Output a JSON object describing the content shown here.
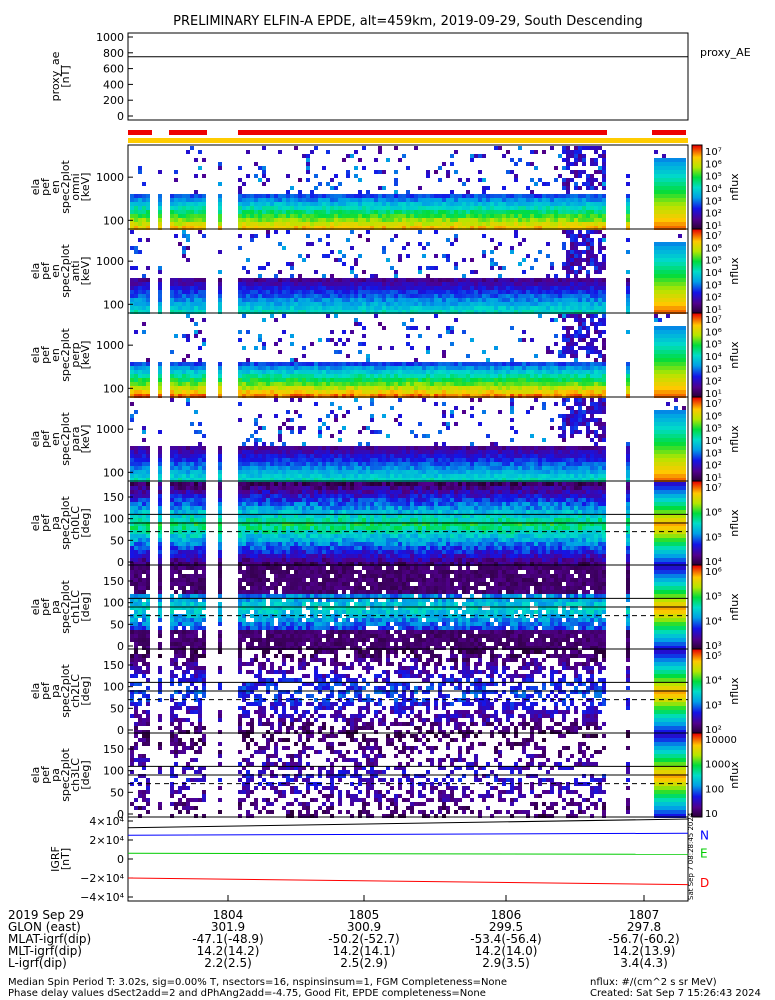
{
  "title": "PRELIMINARY ELFIN-A EPDE, alt=459km, 2019-09-29, South Descending",
  "panels": [
    {
      "id": "ae",
      "label": [
        "proxy_ae",
        "[nT]"
      ],
      "right_label": "proxy_AE",
      "yticks": [
        "1000",
        "800",
        "600",
        "400",
        "200",
        "0"
      ],
      "value": 750
    },
    {
      "id": "en1",
      "label": [
        "ela",
        "pef",
        "en",
        "spec2plot",
        "omni",
        "[keV]"
      ],
      "yticks": [
        "1000",
        "100"
      ],
      "kind": "energy",
      "cbar": [
        "10⁷",
        "10⁶",
        "10⁵",
        "10⁴",
        "10³",
        "10²",
        "10¹"
      ],
      "cbar_label": "nflux"
    },
    {
      "id": "en2",
      "label": [
        "ela",
        "pef",
        "en",
        "spec2plot",
        "anti",
        "[keV]"
      ],
      "yticks": [
        "1000",
        "100"
      ],
      "kind": "energy",
      "cbar": [
        "10⁷",
        "10⁶",
        "10⁵",
        "10⁴",
        "10³",
        "10²",
        "10¹"
      ],
      "cbar_label": "nflux"
    },
    {
      "id": "en3",
      "label": [
        "ela",
        "pef",
        "en",
        "spec2plot",
        "perp",
        "[keV]"
      ],
      "yticks": [
        "1000",
        "100"
      ],
      "kind": "energy",
      "cbar": [
        "10⁷",
        "10⁶",
        "10⁵",
        "10⁴",
        "10³",
        "10²",
        "10¹"
      ],
      "cbar_label": "nflux"
    },
    {
      "id": "en4",
      "label": [
        "ela",
        "pef",
        "en",
        "spec2plot",
        "para",
        "[keV]"
      ],
      "yticks": [
        "1000",
        "100"
      ],
      "kind": "energy",
      "cbar": [
        "10⁷",
        "10⁶",
        "10⁵",
        "10⁴",
        "10³",
        "10²",
        "10¹"
      ],
      "cbar_label": "nflux"
    },
    {
      "id": "pa0",
      "label": [
        "ela",
        "pef",
        "pa",
        "spec2plot",
        "ch0LC",
        "[deg]"
      ],
      "yticks": [
        "150",
        "100",
        "50",
        "0"
      ],
      "kind": "pa",
      "cbar": [
        "10⁷",
        "10⁶",
        "10⁵",
        "10⁴"
      ],
      "cbar_label": "nflux"
    },
    {
      "id": "pa1",
      "label": [
        "ela",
        "pef",
        "pa",
        "spec2plot",
        "ch1LC",
        "[deg]"
      ],
      "yticks": [
        "150",
        "100",
        "50",
        "0"
      ],
      "kind": "pa",
      "cbar": [
        "10⁶",
        "10⁵",
        "10⁴",
        "10³"
      ],
      "cbar_label": "nflux"
    },
    {
      "id": "pa2",
      "label": [
        "ela",
        "pef",
        "pa",
        "spec2plot",
        "ch2LC",
        "[deg]"
      ],
      "yticks": [
        "150",
        "100",
        "50",
        "0"
      ],
      "kind": "pa",
      "cbar": [
        "10⁵",
        "10⁴",
        "10³",
        "10²"
      ],
      "cbar_label": "nflux"
    },
    {
      "id": "pa3",
      "label": [
        "ela",
        "pef",
        "pa",
        "spec2plot",
        "ch3LC",
        "[deg]"
      ],
      "yticks": [
        "150",
        "100",
        "50",
        "0"
      ],
      "kind": "pa",
      "cbar": [
        "10000",
        "1000",
        "100",
        "10"
      ],
      "cbar_label": "nflux"
    },
    {
      "id": "b",
      "label": [
        "IGRF",
        "[nT]"
      ],
      "yticks": [
        "4×10⁴",
        "2×10⁴",
        "0",
        "−2×10⁴",
        "−4×10⁴"
      ],
      "kind": "field",
      "components": [
        "N",
        "E",
        "D"
      ]
    }
  ],
  "colors": {
    "red_bar": "#ee0000",
    "yellow_bar": "#ffcc00",
    "N": "#0000ff",
    "E": "#00cc00",
    "D": "#ff0000"
  },
  "xaxis": {
    "ticks": [
      "1804",
      "1805",
      "1806",
      "1807"
    ],
    "row_labels": [
      "2019 Sep 29",
      "GLON (east)",
      "MLAT-igrf(dip)",
      "MLT-igrf(dip)",
      "L-igrf(dip)"
    ],
    "columns": [
      [
        "301.9",
        "-47.1(-48.9)",
        "14.2(14.2)",
        "2.2(2.5)"
      ],
      [
        "300.9",
        "-50.2(-52.7)",
        "14.2(14.1)",
        "2.5(2.9)"
      ],
      [
        "299.5",
        "-53.4(-56.4)",
        "14.2(14.0)",
        "2.9(3.5)"
      ],
      [
        "297.8",
        "-56.7(-60.2)",
        "14.2(13.9)",
        "3.4(4.3)"
      ]
    ]
  },
  "footer": {
    "line1": "Median Spin Period T: 3.02s, sig=0.00% T, nsectors=16, nspinsinsum=1, FGM Completeness=None",
    "line2": "Phase delay values dSect2add=2 and dPhAng2add=-4.75, Good Fit, EPDE completeness=None",
    "nflux": "nflux: #/(cm^2 s sr MeV)",
    "created": "Created: Sat Sep  7 15:26:43 2024",
    "side": "Sat Sep  7 08:28:45 2024"
  },
  "chart_data": {
    "type": "heatmap",
    "title": "PRELIMINARY ELFIN-A EPDE, alt=459km, 2019-09-29, South Descending",
    "x_ticks": [
      "1804",
      "1805",
      "1806",
      "1807"
    ],
    "energy_axis": {
      "label": "[keV]",
      "scale": "log",
      "ticks": [
        100,
        1000
      ]
    },
    "pitch_axis": {
      "label": "[deg]",
      "ticks": [
        0,
        50,
        100,
        150
      ]
    },
    "colorbar": {
      "label": "nflux",
      "scale": "log"
    },
    "proxy_ae": {
      "ylim": [
        0,
        1000
      ],
      "value": 750
    },
    "igrf_lines": {
      "N": 25000,
      "E": 6000,
      "D": -22000
    }
  }
}
